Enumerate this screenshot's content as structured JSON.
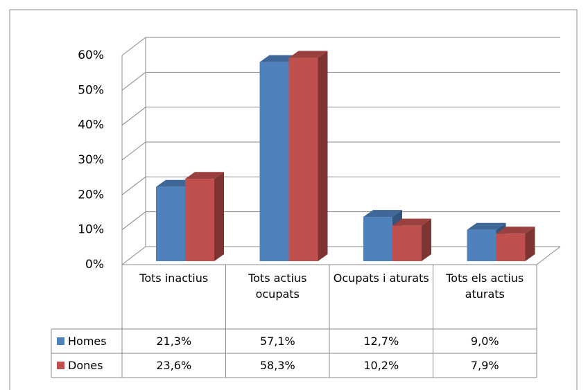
{
  "chart_data": {
    "type": "bar",
    "categories": [
      "Tots inactius",
      "Tots actius ocupats",
      "Ocupats i aturats",
      "Tots els actius aturats"
    ],
    "series": [
      {
        "name": "Homes",
        "color": "#4f81bd",
        "values": [
          21.3,
          57.1,
          12.7,
          9.0
        ],
        "value_labels": [
          "21,3%",
          "57,1%",
          "12,7%",
          "9,0%"
        ]
      },
      {
        "name": "Dones",
        "color": "#c0504d",
        "values": [
          23.6,
          58.3,
          10.2,
          7.9
        ],
        "value_labels": [
          "23,6%",
          "58,3%",
          "10,2%",
          "7,9%"
        ]
      }
    ],
    "ylim": [
      0,
      60
    ],
    "yticks": [
      {
        "value": 0,
        "label": "0%"
      },
      {
        "value": 10,
        "label": "10%"
      },
      {
        "value": 20,
        "label": "20%"
      },
      {
        "value": 30,
        "label": "30%"
      },
      {
        "value": 40,
        "label": "40%"
      },
      {
        "value": 50,
        "label": "50%"
      },
      {
        "value": 60,
        "label": "60%"
      }
    ],
    "grid": true,
    "data_table": true
  }
}
